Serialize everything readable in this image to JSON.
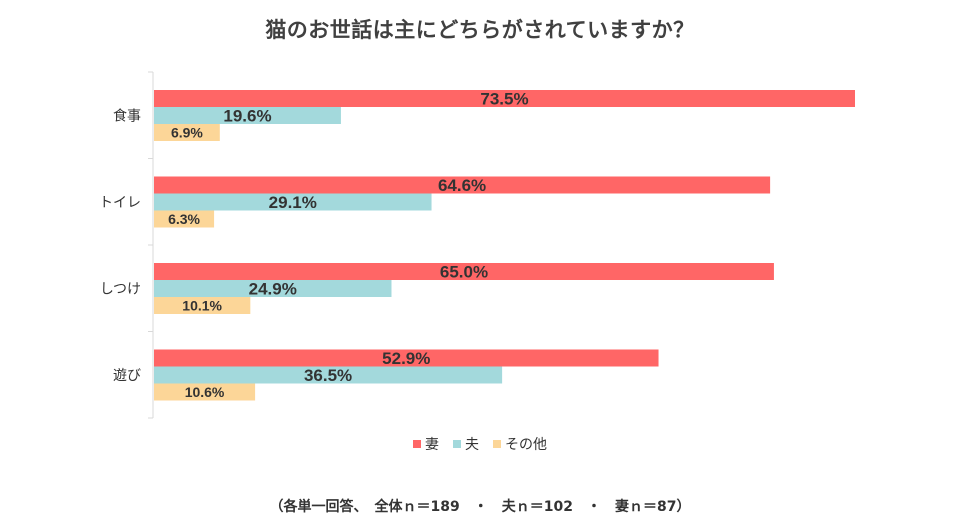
{
  "chart_data": {
    "type": "bar",
    "orientation": "horizontal",
    "title": "猫のお世話は主にどちらがされていますか？",
    "categories": [
      "食事",
      "トイレ",
      "しつけ",
      "遊び"
    ],
    "series": [
      {
        "name": "妻",
        "values": [
          73.5,
          64.6,
          65.0,
          52.9
        ],
        "labels": [
          "73.5%",
          "64.6%",
          "65.0%",
          "52.9%"
        ],
        "color": "#ff6666"
      },
      {
        "name": "夫",
        "values": [
          19.6,
          29.1,
          24.9,
          36.5
        ],
        "labels": [
          "19.6%",
          "29.1%",
          "24.9%",
          "36.5%"
        ],
        "color": "#a3d9dc"
      },
      {
        "name": "その他",
        "values": [
          6.9,
          6.3,
          10.1,
          10.6
        ],
        "labels": [
          "6.9%",
          "6.3%",
          "10.1%",
          "10.6%"
        ],
        "color": "#fcd698"
      }
    ],
    "xlim": [
      0,
      73.5
    ],
    "grid": false,
    "legend_position": "bottom"
  },
  "footnote": "（各単一回答、　全体ｎ＝189　・　夫ｎ＝102　・　妻ｎ＝87）"
}
